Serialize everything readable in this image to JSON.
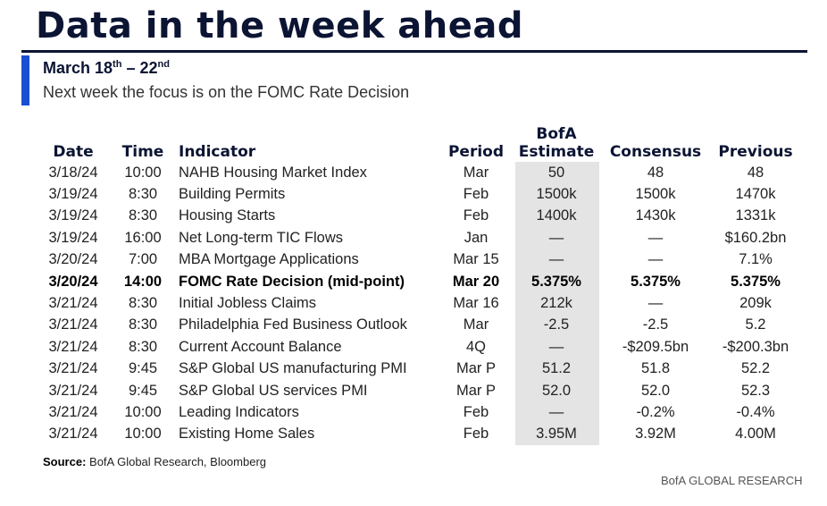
{
  "title": "Data in the week ahead",
  "subhead": {
    "start": "March 18",
    "start_sup": "th",
    "dash": " – 22",
    "end_sup": "nd"
  },
  "subtitle": "Next week the focus is on the FOMC Rate Decision",
  "table": {
    "headers": {
      "date": "Date",
      "time": "Time",
      "indicator": "Indicator",
      "period": "Period",
      "estimate_line1": "BofA",
      "estimate_line2": "Estimate",
      "consensus": "Consensus",
      "previous": "Previous"
    },
    "rows": [
      {
        "date": "3/18/24",
        "time": "10:00",
        "indicator": "NAHB Housing Market Index",
        "period": "Mar",
        "estimate": "50",
        "consensus": "48",
        "previous": "48",
        "highlight": false
      },
      {
        "date": "3/19/24",
        "time": "8:30",
        "indicator": "Building Permits",
        "period": "Feb",
        "estimate": "1500k",
        "consensus": "1500k",
        "previous": "1470k",
        "highlight": false
      },
      {
        "date": "3/19/24",
        "time": "8:30",
        "indicator": "Housing Starts",
        "period": "Feb",
        "estimate": "1400k",
        "consensus": "1430k",
        "previous": "1331k",
        "highlight": false
      },
      {
        "date": "3/19/24",
        "time": "16:00",
        "indicator": "Net Long-term TIC Flows",
        "period": "Jan",
        "estimate": "—",
        "consensus": "—",
        "previous": "$160.2bn",
        "highlight": false
      },
      {
        "date": "3/20/24",
        "time": "7:00",
        "indicator": "MBA Mortgage Applications",
        "period": "Mar 15",
        "estimate": "—",
        "consensus": "—",
        "previous": "7.1%",
        "highlight": false
      },
      {
        "date": "3/20/24",
        "time": "14:00",
        "indicator": "FOMC Rate Decision (mid-point)",
        "period": "Mar 20",
        "estimate": "5.375%",
        "consensus": "5.375%",
        "previous": "5.375%",
        "highlight": true
      },
      {
        "date": "3/21/24",
        "time": "8:30",
        "indicator": "Initial Jobless Claims",
        "period": "Mar 16",
        "estimate": "212k",
        "consensus": "—",
        "previous": "209k",
        "highlight": false
      },
      {
        "date": "3/21/24",
        "time": "8:30",
        "indicator": "Philadelphia Fed Business Outlook",
        "period": "Mar",
        "estimate": "-2.5",
        "consensus": "-2.5",
        "previous": "5.2",
        "highlight": false
      },
      {
        "date": "3/21/24",
        "time": "8:30",
        "indicator": "Current Account Balance",
        "period": "4Q",
        "estimate": "—",
        "consensus": "-$209.5bn",
        "previous": "-$200.3bn",
        "highlight": false
      },
      {
        "date": "3/21/24",
        "time": "9:45",
        "indicator": "S&P Global US manufacturing PMI",
        "period": "Mar P",
        "estimate": "51.2",
        "consensus": "51.8",
        "previous": "52.2",
        "highlight": false
      },
      {
        "date": "3/21/24",
        "time": "9:45",
        "indicator": "S&P Global US services PMI",
        "period": "Mar P",
        "estimate": "52.0",
        "consensus": "52.0",
        "previous": "52.3",
        "highlight": false
      },
      {
        "date": "3/21/24",
        "time": "10:00",
        "indicator": "Leading Indicators",
        "period": "Feb",
        "estimate": "—",
        "consensus": "-0.2%",
        "previous": "-0.4%",
        "highlight": false
      },
      {
        "date": "3/21/24",
        "time": "10:00",
        "indicator": "Existing Home Sales",
        "period": "Feb",
        "estimate": "3.95M",
        "consensus": "3.92M",
        "previous": "4.00M",
        "highlight": false
      }
    ]
  },
  "source": {
    "label": "Source:",
    "text": " BofA Global Research, Bloomberg"
  },
  "brand": "BofA GLOBAL RESEARCH",
  "colors": {
    "title": "#0b1433",
    "accent": "#1b4fd1",
    "estimate_shade": "#e4e4e4"
  }
}
